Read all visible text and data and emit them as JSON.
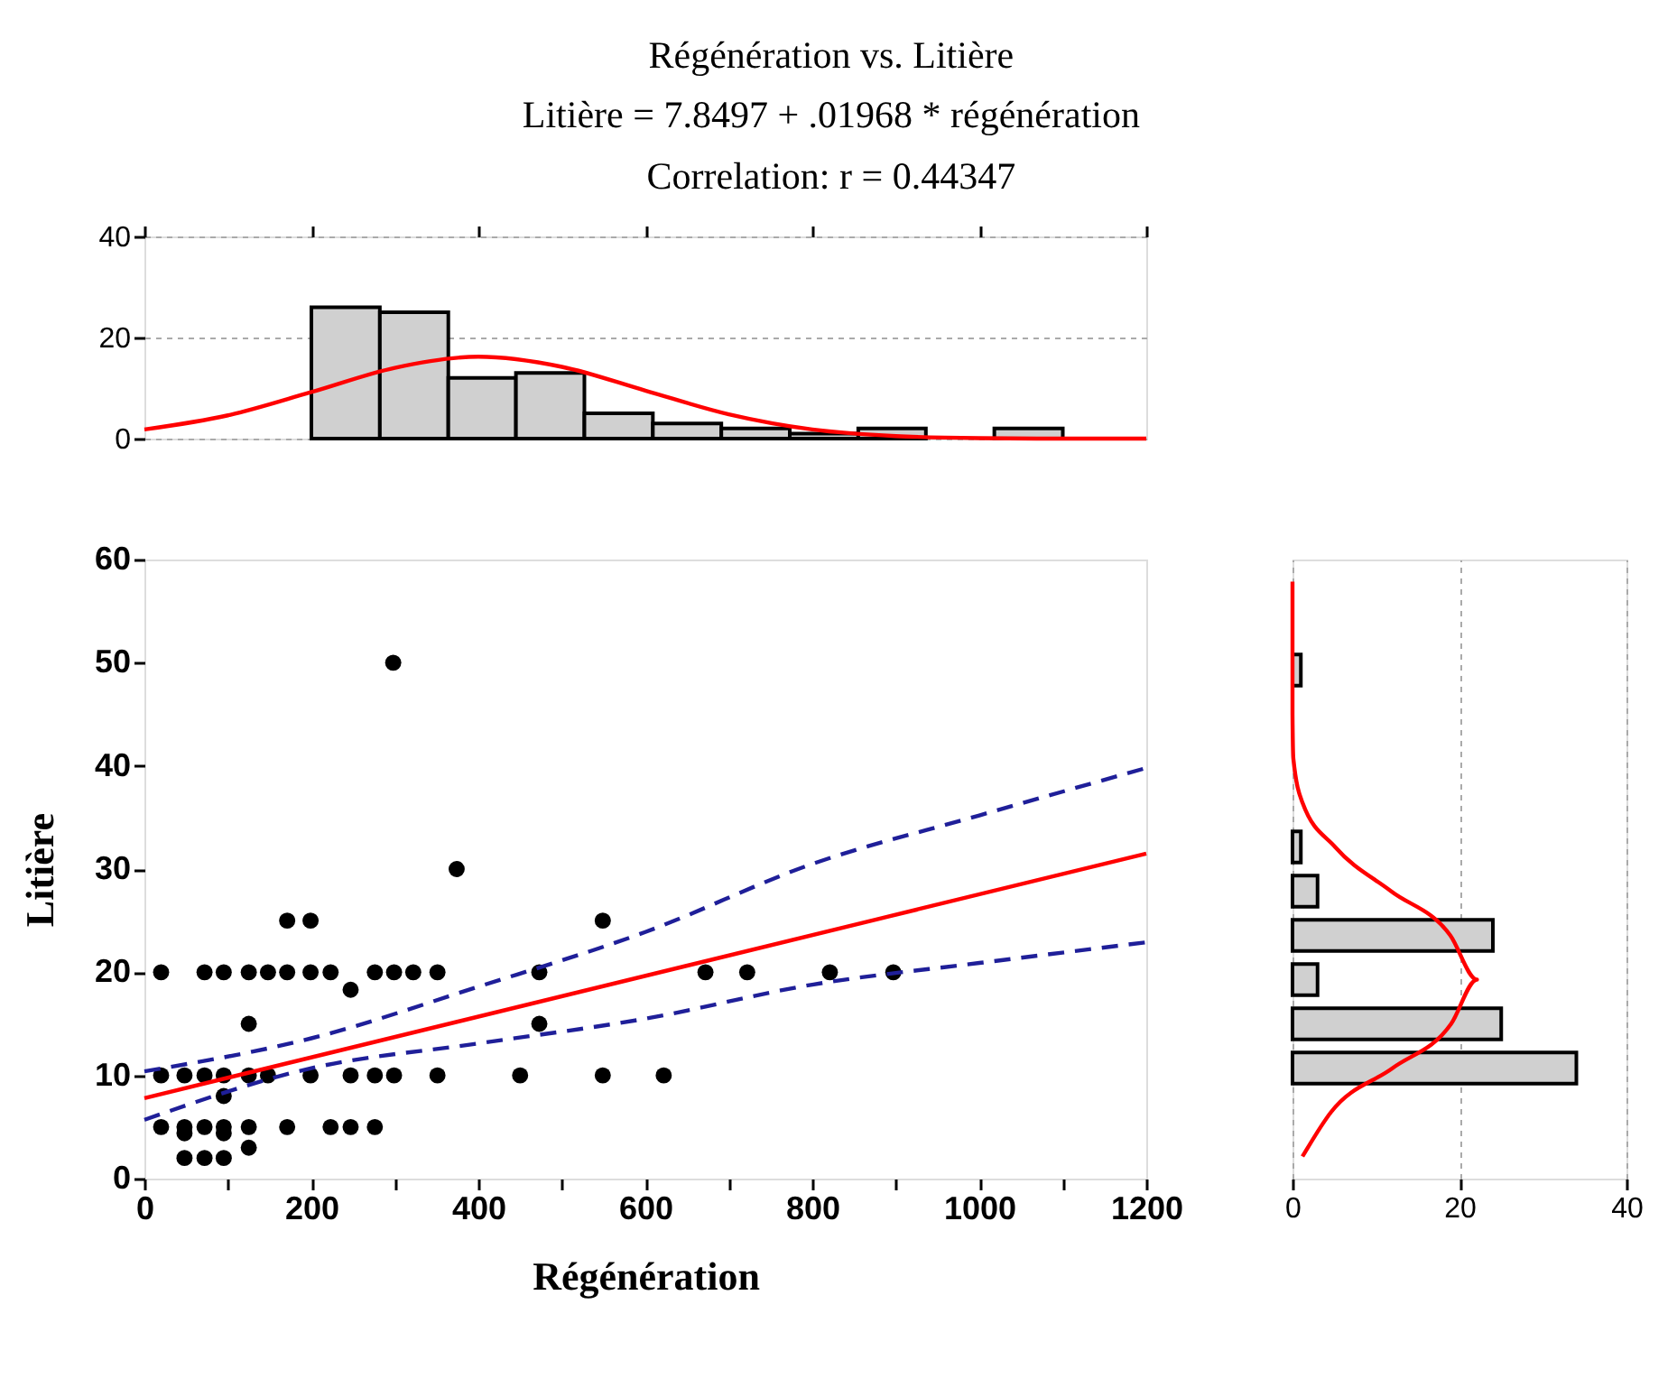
{
  "chart_data": [
    {
      "type": "histogram",
      "title": "Régénération vs. Litière",
      "subtitle": "Litière = 7.8497 + .01968 * régénération",
      "annotations": [
        "Correlation: r = 0.44347"
      ],
      "bins": [
        200,
        282,
        364,
        445,
        527,
        609,
        691,
        773,
        855,
        936,
        1018,
        1100
      ],
      "values": [
        26,
        25,
        12,
        13,
        5,
        3,
        2,
        1,
        2,
        0,
        2
      ],
      "color": "#d0d0d0",
      "xlim": [
        0,
        1200
      ],
      "xticks": [
        {
          "value": 0,
          "label": null
        },
        {
          "value": 200,
          "label": null
        },
        {
          "value": 400,
          "label": null
        },
        {
          "value": 600,
          "label": null
        },
        {
          "value": 800,
          "label": null
        },
        {
          "value": 1000,
          "label": null
        },
        {
          "value": 1200,
          "label": null
        }
      ],
      "ylim": [
        0,
        40
      ],
      "yticks": [
        0,
        20,
        40
      ],
      "grid": "y",
      "tick_labels": "y",
      "series": [
        {
          "type": "line",
          "color": "#ff0000",
          "x": [
            0,
            100,
            200,
            300,
            400,
            500,
            600,
            700,
            800,
            900,
            1000,
            1100,
            1200
          ],
          "values": [
            1.8,
            4.6,
            9.2,
            14.0,
            16.2,
            14.2,
            9.5,
            4.8,
            1.8,
            0.5,
            0.1,
            0,
            0
          ]
        }
      ]
    },
    {
      "type": "scatter",
      "xlabel": "Régénération",
      "ylabel": "Litière",
      "xlim": [
        0,
        1200
      ],
      "xticks": [
        0,
        {
          "value": 100,
          "label": null
        },
        200,
        {
          "value": 300,
          "label": null
        },
        400,
        {
          "value": 500,
          "label": null
        },
        600,
        {
          "value": 700,
          "label": null
        },
        800,
        {
          "value": 900,
          "label": null
        },
        1000,
        {
          "value": 1100,
          "label": null
        },
        1200
      ],
      "ylim": [
        0,
        60
      ],
      "yticks": [
        0,
        10,
        20,
        30,
        40,
        50,
        60
      ],
      "series": [
        {
          "type": "scatter",
          "color": "#000000",
          "marker": "circle",
          "x": [
            298,
            374,
            171,
            199,
            549,
            20,
            72,
            95,
            125,
            148,
            171,
            199,
            223,
            276,
            299,
            322,
            351,
            473,
            672,
            722,
            821,
            897,
            247,
            125,
            473,
            20,
            48,
            72,
            95,
            125,
            148,
            199,
            247,
            276,
            299,
            351,
            450,
            549,
            622,
            95,
            20,
            48,
            72,
            95,
            125,
            171,
            223,
            247,
            276,
            48,
            95,
            125,
            48,
            72,
            95
          ],
          "values": [
            50,
            30,
            25,
            25,
            25,
            20,
            20,
            20,
            20,
            20,
            20,
            20,
            20,
            20,
            20,
            20,
            20,
            20,
            20,
            20,
            20,
            20,
            18.3,
            15,
            15,
            10,
            10,
            10,
            10,
            10,
            10,
            10,
            10,
            10,
            10,
            10,
            10,
            10,
            10,
            8,
            5,
            5,
            5,
            5,
            5,
            5,
            5,
            5,
            5,
            4.4,
            4.4,
            3,
            2,
            2,
            2
          ]
        },
        {
          "type": "line",
          "color": "#ff0000",
          "x": [
            0,
            1200
          ],
          "values": [
            7.8,
            31.5
          ]
        },
        {
          "type": "line",
          "color": "#1f1f99",
          "line_style": "dashed",
          "x": [
            0,
            200,
            400,
            600,
            800,
            1000,
            1200
          ],
          "values": [
            10.4,
            13.6,
            18.6,
            23.9,
            30.5,
            35.2,
            39.8
          ]
        },
        {
          "type": "line",
          "color": "#1f1f99",
          "line_style": "dashed",
          "x": [
            0,
            200,
            400,
            600,
            800,
            1000,
            1200
          ],
          "values": [
            5.7,
            10.7,
            13.1,
            15.5,
            18.8,
            20.9,
            22.9
          ]
        }
      ]
    },
    {
      "type": "bar",
      "orientation": "horizontal",
      "categories": [
        null,
        null,
        null,
        null,
        null,
        null,
        null,
        null,
        null,
        null,
        null,
        null,
        null,
        null
      ],
      "values": [
        0,
        0,
        1,
        0,
        0,
        0,
        1,
        3,
        24,
        3,
        25,
        34,
        0,
        0
      ],
      "color": "#d0d0d0",
      "xlim": [
        0,
        40
      ],
      "xticks": [
        0,
        20,
        40
      ],
      "grid": "x",
      "series": [
        {
          "type": "line",
          "color": "#ff0000",
          "values": [
            0,
            0,
            0,
            0,
            0.1,
            1.2,
            5.1,
            11.8,
            18.9,
            22.1,
            19.0,
            12.0,
            4.6,
            1.2
          ]
        }
      ]
    }
  ]
}
